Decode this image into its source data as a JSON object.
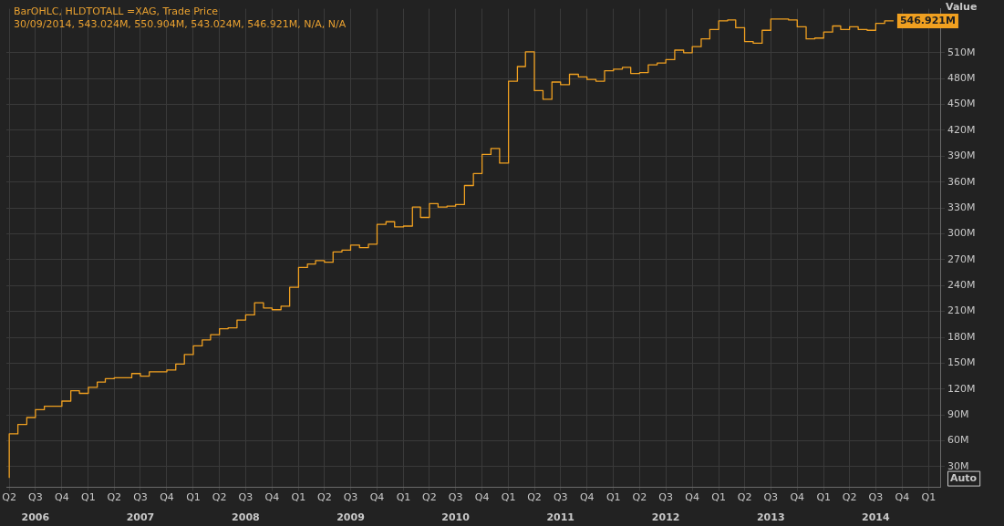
{
  "chart_data": {
    "type": "step",
    "title": "BarOHLC, HLDTOTALL =XAG, Trade Price",
    "subtitle": "30/09/2014, 543.024M, 550.904M, 543.024M, 546.921M, N/A, N/A",
    "ylabel": "Value",
    "annotations": [
      "Auto"
    ],
    "x": [
      "2006-04",
      "2006-05",
      "2006-06",
      "2006-07",
      "2006-08",
      "2006-09",
      "2006-10",
      "2006-11",
      "2006-12",
      "2007-01",
      "2007-02",
      "2007-03",
      "2007-04",
      "2007-05",
      "2007-06",
      "2007-07",
      "2007-08",
      "2007-09",
      "2007-10",
      "2007-11",
      "2007-12",
      "2008-01",
      "2008-02",
      "2008-03",
      "2008-04",
      "2008-05",
      "2008-06",
      "2008-07",
      "2008-08",
      "2008-09",
      "2008-10",
      "2008-11",
      "2008-12",
      "2009-01",
      "2009-02",
      "2009-03",
      "2009-04",
      "2009-05",
      "2009-06",
      "2009-07",
      "2009-08",
      "2009-09",
      "2009-10",
      "2009-11",
      "2009-12",
      "2010-01",
      "2010-02",
      "2010-03",
      "2010-04",
      "2010-05",
      "2010-06",
      "2010-07",
      "2010-08",
      "2010-09",
      "2010-10",
      "2010-11",
      "2010-12",
      "2011-01",
      "2011-02",
      "2011-03",
      "2011-04",
      "2011-05",
      "2011-06",
      "2011-07",
      "2011-08",
      "2011-09",
      "2011-10",
      "2011-11",
      "2011-12",
      "2012-01",
      "2012-02",
      "2012-03",
      "2012-04",
      "2012-05",
      "2012-06",
      "2012-07",
      "2012-08",
      "2012-09",
      "2012-10",
      "2012-11",
      "2012-12",
      "2013-01",
      "2013-02",
      "2013-03",
      "2013-04",
      "2013-05",
      "2013-06",
      "2013-07",
      "2013-08",
      "2013-09",
      "2013-10",
      "2013-11",
      "2013-12",
      "2014-01",
      "2014-02",
      "2014-03",
      "2014-04",
      "2014-05",
      "2014-06",
      "2014-07",
      "2014-08",
      "2014-09"
    ],
    "series": [
      {
        "color": "#f0a020",
        "values": [
          17,
          68,
          79,
          87,
          96,
          100,
          100,
          106,
          118,
          115,
          122,
          128,
          132,
          133,
          133,
          138,
          135,
          140,
          140,
          142,
          149,
          160,
          170,
          177,
          183,
          190,
          191,
          200,
          206,
          220,
          214,
          212,
          216,
          238,
          261,
          265,
          269,
          267,
          279,
          281,
          287,
          284,
          288,
          311,
          314,
          308,
          309,
          331,
          319,
          335,
          331,
          332,
          334,
          356,
          370,
          392,
          399,
          382,
          477,
          494,
          511,
          466,
          456,
          476,
          473,
          485,
          482,
          479,
          477,
          489,
          491,
          493,
          486,
          487,
          496,
          498,
          502,
          513,
          510,
          517,
          526,
          537,
          547,
          548,
          539,
          523,
          521,
          536,
          549,
          549,
          548,
          540,
          526,
          527,
          534,
          541,
          537,
          540,
          537,
          536,
          544,
          546.921
        ],
        "value_labels": [
          null,
          null,
          null,
          null,
          null,
          null,
          null,
          null,
          null,
          null,
          null,
          null,
          null,
          null,
          null,
          null,
          null,
          null,
          null,
          null,
          null,
          null,
          null,
          null,
          null,
          null,
          null,
          null,
          null,
          null,
          null,
          null,
          null,
          null,
          null,
          null,
          null,
          null,
          null,
          null,
          null,
          null,
          null,
          null,
          null,
          null,
          null,
          null,
          null,
          null,
          null,
          null,
          null,
          null,
          null,
          null,
          null,
          null,
          null,
          null,
          null,
          null,
          null,
          null,
          null,
          null,
          null,
          null,
          null,
          null,
          null,
          null,
          null,
          null,
          null,
          null,
          null,
          null,
          null,
          null,
          null,
          null,
          null,
          null,
          null,
          null,
          null,
          null,
          null,
          null,
          null,
          null,
          null,
          null,
          null,
          null,
          null,
          null,
          null,
          null,
          null,
          "546.921M"
        ]
      }
    ],
    "xlim": [
      "2006-03-22",
      "2015-02-10"
    ],
    "xticks": [
      {
        "value": "2006-04-01",
        "label": "Q2"
      },
      {
        "value": "2006-07-01",
        "label": "Q3"
      },
      {
        "value": "2006-10-01",
        "label": "Q4"
      },
      {
        "value": "2007-01-01",
        "label": "Q1"
      },
      {
        "value": "2007-04-01",
        "label": "Q2"
      },
      {
        "value": "2007-07-01",
        "label": "Q3"
      },
      {
        "value": "2007-10-01",
        "label": "Q4"
      },
      {
        "value": "2008-01-01",
        "label": "Q1"
      },
      {
        "value": "2008-04-01",
        "label": "Q2"
      },
      {
        "value": "2008-07-01",
        "label": "Q3"
      },
      {
        "value": "2008-10-01",
        "label": "Q4"
      },
      {
        "value": "2009-01-01",
        "label": "Q1"
      },
      {
        "value": "2009-04-01",
        "label": "Q2"
      },
      {
        "value": "2009-07-01",
        "label": "Q3"
      },
      {
        "value": "2009-10-01",
        "label": "Q4"
      },
      {
        "value": "2010-01-01",
        "label": "Q1"
      },
      {
        "value": "2010-04-01",
        "label": "Q2"
      },
      {
        "value": "2010-07-01",
        "label": "Q3"
      },
      {
        "value": "2010-10-01",
        "label": "Q4"
      },
      {
        "value": "2011-01-01",
        "label": "Q1"
      },
      {
        "value": "2011-04-01",
        "label": "Q2"
      },
      {
        "value": "2011-07-01",
        "label": "Q3"
      },
      {
        "value": "2011-10-01",
        "label": "Q4"
      },
      {
        "value": "2012-01-01",
        "label": "Q1"
      },
      {
        "value": "2012-04-01",
        "label": "Q2"
      },
      {
        "value": "2012-07-01",
        "label": "Q3"
      },
      {
        "value": "2012-10-01",
        "label": "Q4"
      },
      {
        "value": "2013-01-01",
        "label": "Q1"
      },
      {
        "value": "2013-04-01",
        "label": "Q2"
      },
      {
        "value": "2013-07-01",
        "label": "Q3"
      },
      {
        "value": "2013-10-01",
        "label": "Q4"
      },
      {
        "value": "2014-01-01",
        "label": "Q1"
      },
      {
        "value": "2014-04-01",
        "label": "Q2"
      },
      {
        "value": "2014-07-01",
        "label": "Q3"
      },
      {
        "value": "2014-10-01",
        "label": "Q4"
      },
      {
        "value": "2015-01-01",
        "label": "Q1"
      }
    ],
    "x2lim": [
      "2006-03-22",
      "2015-02-10"
    ],
    "x2ticks": [
      {
        "value": "2006-07-01",
        "label": "2006"
      },
      {
        "value": "2007-07-01",
        "label": "2007"
      },
      {
        "value": "2008-07-01",
        "label": "2008"
      },
      {
        "value": "2009-07-01",
        "label": "2009"
      },
      {
        "value": "2010-07-01",
        "label": "2010"
      },
      {
        "value": "2011-07-01",
        "label": "2011"
      },
      {
        "value": "2012-07-01",
        "label": "2012"
      },
      {
        "value": "2013-07-01",
        "label": "2013"
      },
      {
        "value": "2014-07-01",
        "label": "2014"
      }
    ],
    "ylim": [
      6,
      561
    ],
    "yticks": [
      {
        "value": 30,
        "label": "30M"
      },
      {
        "value": 60,
        "label": "60M"
      },
      {
        "value": 90,
        "label": "90M"
      },
      {
        "value": 120,
        "label": "120M"
      },
      {
        "value": 150,
        "label": "150M"
      },
      {
        "value": 180,
        "label": "180M"
      },
      {
        "value": 210,
        "label": "210M"
      },
      {
        "value": 240,
        "label": "240M"
      },
      {
        "value": 270,
        "label": "270M"
      },
      {
        "value": 300,
        "label": "300M"
      },
      {
        "value": 330,
        "label": "330M"
      },
      {
        "value": 360,
        "label": "360M"
      },
      {
        "value": 390,
        "label": "390M"
      },
      {
        "value": 420,
        "label": "420M"
      },
      {
        "value": 450,
        "label": "450M"
      },
      {
        "value": 480,
        "label": "480M"
      },
      {
        "value": 510,
        "label": "510M"
      }
    ],
    "grid": true,
    "line_style": "solid"
  }
}
